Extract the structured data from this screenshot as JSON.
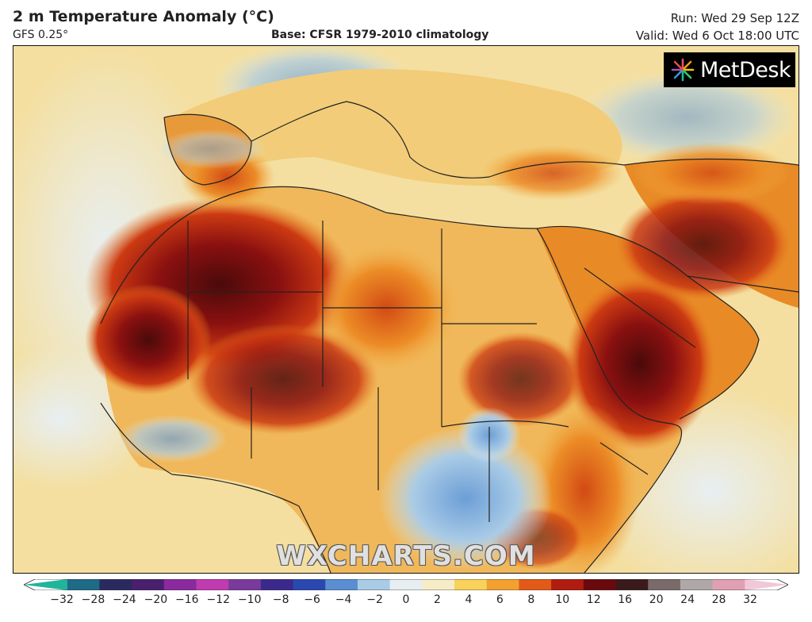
{
  "header": {
    "title": "2 m Temperature Anomaly (°C)",
    "model": "GFS 0.25°",
    "base": "Base: CFSR 1979-2010 climatology",
    "run": "Run: Wed 29 Sep 12Z",
    "valid": "Valid: Wed 6 Oct 18:00 UTC"
  },
  "logo": {
    "text": "MetDesk",
    "icon": "metdesk-starburst-icon"
  },
  "watermark": "WXCHARTS.COM",
  "colorbar": {
    "ticks": [
      "−32",
      "−28",
      "−24",
      "−20",
      "−16",
      "−12",
      "−10",
      "−8",
      "−6",
      "−4",
      "−2",
      "0",
      "2",
      "4",
      "6",
      "8",
      "10",
      "12",
      "16",
      "20",
      "24",
      "28",
      "32"
    ],
    "colors": [
      "#1fb59a",
      "#1d6b86",
      "#2a2a5e",
      "#4a1f6e",
      "#8a2a9e",
      "#c03ab0",
      "#7a3a9c",
      "#3b2a8c",
      "#2a48b0",
      "#5a8ed0",
      "#a9cbe6",
      "#e6eef2",
      "#f6ecc6",
      "#f8d25a",
      "#f2a030",
      "#e25a18",
      "#b01c10",
      "#6a0a0e",
      "#3a1a1a",
      "#7a6a6a",
      "#b0a8a8",
      "#e0a0b4",
      "#f0c8d8"
    ]
  },
  "colors": {
    "ocean_warm": "#f6e4a6",
    "ocean_cool": "#cfe2ee",
    "anomaly_hot": "#b01c10",
    "anomaly_extreme": "#4a0a0a",
    "anomaly_cool": "#8fbbe0",
    "borders": "#222222"
  }
}
